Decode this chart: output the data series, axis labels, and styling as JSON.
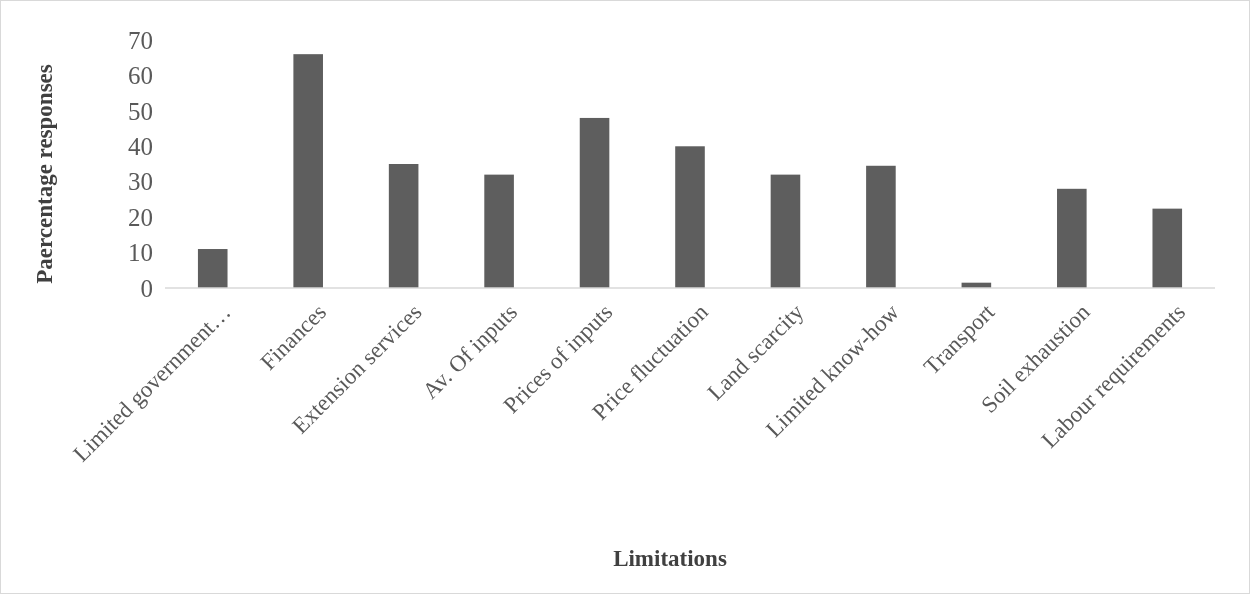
{
  "chart_data": {
    "type": "bar",
    "xlabel": "Limitations",
    "ylabel": "Paercentage responses",
    "categories": [
      "Limited government…",
      "Finances",
      "Extension services",
      "Av. Of inputs",
      "Prices of inputs",
      "Price fluctuation",
      "Land scarcity",
      "Limited know-how",
      "Transport",
      "Soil exhaustion",
      "Labour requirements"
    ],
    "values": [
      11,
      66,
      35,
      32,
      48,
      40,
      32,
      34.5,
      1.5,
      28,
      22.4
    ],
    "color": "#5e5e5e",
    "ylim": [
      0,
      70
    ],
    "yticks": [
      0,
      10,
      20,
      30,
      40,
      50,
      60,
      70
    ],
    "grid": false
  }
}
